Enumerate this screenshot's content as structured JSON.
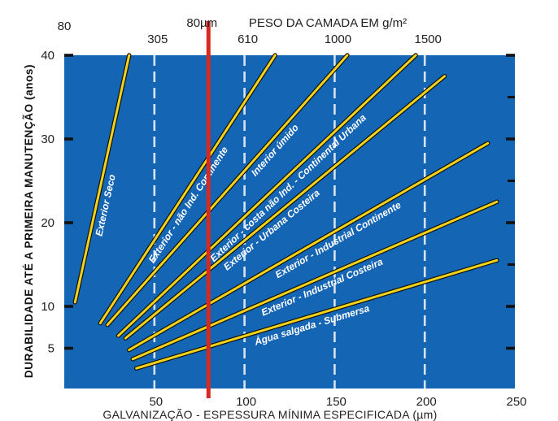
{
  "chart_data": {
    "type": "line",
    "ylabel": "DURABILIDADE ATÉ A PRIMEIRA MANUTENÇÃO (anos)",
    "xlabel": "GALVANIZAÇÃO - ESPESSURA MÍNIMA ESPECIFICADA (µm)",
    "top_axis_title": "PESO DA CAMADA EM g/m²",
    "xlim": [
      0,
      250
    ],
    "ylim": [
      0,
      40
    ],
    "x_ticks": [
      50,
      100,
      150,
      200,
      250
    ],
    "x_tick_labels": [
      "50",
      "100",
      "150",
      "200",
      "250"
    ],
    "y_ticks": [
      5,
      10,
      20,
      30,
      40
    ],
    "y_tick_labels": [
      "5",
      "10",
      "20",
      "30",
      "40"
    ],
    "top_ticks": [
      {
        "x": 50,
        "label": "305"
      },
      {
        "x": 100,
        "label": "610"
      },
      {
        "x": 150,
        "label": "1000"
      },
      {
        "x": 200,
        "label": "1500"
      }
    ],
    "top_corner_label": "80",
    "marker": {
      "x": 80,
      "label": "80µm",
      "color": "#d62a20"
    },
    "background_color": "#1565b5",
    "line_color": "#f2d21a",
    "gridlines": "dashed vertical at 50, 100, 150, 200",
    "series": [
      {
        "name": "Exterior Seco",
        "x": [
          6,
          36
        ],
        "y": [
          10.5,
          40
        ]
      },
      {
        "name": "Exterior - não Ind. Continente",
        "x": [
          20,
          117
        ],
        "y": [
          8,
          40
        ]
      },
      {
        "name": "Interior úmido",
        "x": [
          24,
          157
        ],
        "y": [
          7.8,
          40
        ]
      },
      {
        "name": "Exterior - costa não Ind. - Continental Urbana",
        "x": [
          30,
          195
        ],
        "y": [
          6.5,
          40
        ]
      },
      {
        "name": "Exterior - Urbana Costeira",
        "x": [
          34,
          211
        ],
        "y": [
          6.2,
          37.5
        ]
      },
      {
        "name": "Exterior - Industrial Continente",
        "x": [
          36,
          235
        ],
        "y": [
          4.8,
          29.5
        ]
      },
      {
        "name": "Exterior - Industrial Costeira",
        "x": [
          38,
          240
        ],
        "y": [
          3.7,
          22.5
        ]
      },
      {
        "name": "Água salgada - Submersa",
        "x": [
          40,
          240
        ],
        "y": [
          2.6,
          15.5
        ]
      }
    ]
  }
}
